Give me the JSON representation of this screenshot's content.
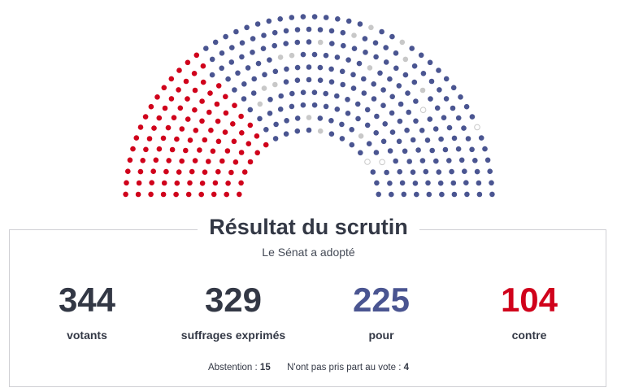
{
  "colors": {
    "contre": "#d0021b",
    "pour": "#4a5591",
    "abstention": "#c8c8c8",
    "non_votant_outline": "#c8c8c8",
    "text": "#333845",
    "border": "#cfcfd4"
  },
  "hemicycle": {
    "seat_counts": {
      "contre": 104,
      "pour": 225,
      "abstention": 15,
      "non_votant": 4
    },
    "left_block_groups": [
      "contre",
      "pour"
    ],
    "right_block_groups": [
      "pour"
    ]
  },
  "result": {
    "title": "Résultat du scrutin",
    "subtitle": "Le Sénat a adopté",
    "stats": [
      {
        "number": "344",
        "label": "votants"
      },
      {
        "number": "329",
        "label": "suffrages exprimés"
      },
      {
        "number": "225",
        "label": "pour"
      },
      {
        "number": "104",
        "label": "contre"
      }
    ],
    "footer": {
      "abstention_label": "Abstention :",
      "abstention_value": "15",
      "nonvote_label": "N'ont pas pris part au vote :",
      "nonvote_value": "4"
    }
  }
}
